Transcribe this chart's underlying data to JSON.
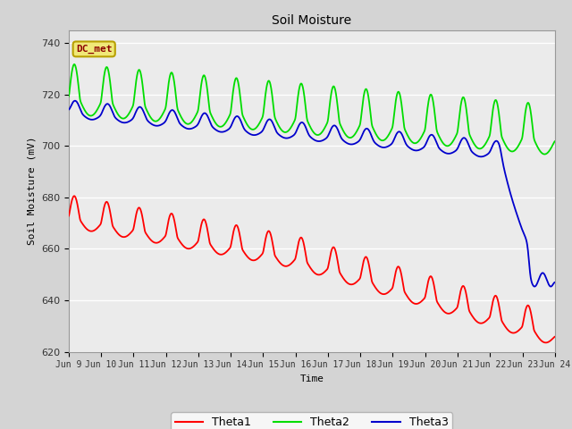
{
  "title": "Soil Moisture",
  "xlabel": "Time",
  "ylabel": "Soil Moisture (mV)",
  "ylim": [
    620,
    745
  ],
  "xlim": [
    0,
    15
  ],
  "fig_bg": "#d4d4d4",
  "plot_bg": "#ebebeb",
  "grid_color": "#ffffff",
  "annotation_text": "DC_met",
  "annotation_bg": "#f0e878",
  "annotation_border": "#b8a000",
  "annotation_text_color": "#8b0000",
  "series": {
    "Theta1": {
      "color": "#ff0000"
    },
    "Theta2": {
      "color": "#00dd00"
    },
    "Theta3": {
      "color": "#0000cc"
    }
  },
  "x_tick_labels": [
    "Jun 9",
    "Jun 10",
    "Jun 11",
    "Jun 12",
    "Jun 13",
    "Jun 14",
    "Jun 15",
    "Jun 16",
    "Jun 17",
    "Jun 18",
    "Jun 19",
    "Jun 20",
    "Jun 21",
    "Jun 22",
    "Jun 23",
    "Jun 24"
  ],
  "x_tick_positions": [
    0,
    1,
    2,
    3,
    4,
    5,
    6,
    7,
    8,
    9,
    10,
    11,
    12,
    13,
    14,
    15
  ],
  "y_tick_positions": [
    620,
    640,
    660,
    680,
    700,
    720,
    740
  ]
}
